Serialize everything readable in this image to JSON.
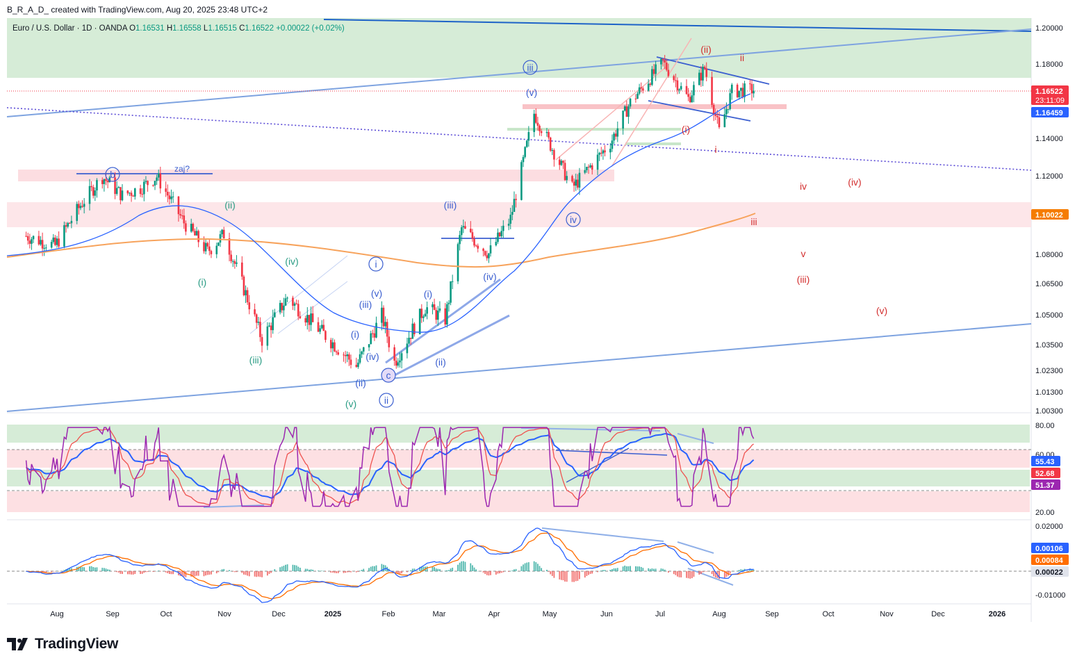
{
  "header": {
    "attribution": "B_R_A_D_ created with TradingView.com, Aug 20, 2025 23:48 UTC+2"
  },
  "legend": {
    "symbol": "Euro / U.S. Dollar · 1D · OANDA",
    "o_label": "O",
    "o": "1.16531",
    "h_label": "H",
    "h": "1.16558",
    "l_label": "L",
    "l": "1.16515",
    "c_label": "C",
    "c": "1.16522",
    "change": "+0.00022 (+0.02%)"
  },
  "footer": {
    "brand": "TradingView"
  },
  "colors": {
    "up": "#089981",
    "down": "#f23645",
    "ema": "#2962ff",
    "sma": "#f7a35c",
    "rsi": "#9c27b0",
    "macd": "#2962ff",
    "signal": "#ff6d00"
  },
  "chart_data": [
    {
      "type": "candlestick",
      "symbol": "EURUSD",
      "timeframe": "1D",
      "price_axis_ticks": [
        "1.20000",
        "1.18000",
        "1.14000",
        "1.12000",
        "1.08000",
        "1.06500",
        "1.05000",
        "1.03500",
        "1.02300",
        "1.01300",
        "1.00300"
      ],
      "time_axis_ticks": [
        "Aug",
        "Sep",
        "Oct",
        "Nov",
        "Dec",
        "2025",
        "Feb",
        "Mar",
        "Apr",
        "May",
        "Jun",
        "Jul",
        "Aug",
        "Sep",
        "Oct",
        "Nov",
        "Dec",
        "2026"
      ],
      "price_markers": [
        {
          "value": "1.16522",
          "sub": "23:11:09",
          "color": "#f23645"
        },
        {
          "value": "1.16459",
          "color": "#2962ff"
        },
        {
          "value": "1.10022",
          "color": "#f57c00"
        }
      ],
      "close_path": [
        [
          "2024-07-15",
          1.087
        ],
        [
          "2024-07-31",
          1.082
        ],
        [
          "2024-08-14",
          1.103
        ],
        [
          "2024-08-26",
          1.118
        ],
        [
          "2024-09-06",
          1.108
        ],
        [
          "2024-09-16",
          1.112
        ],
        [
          "2024-09-25",
          1.118
        ],
        [
          "2024-10-10",
          1.094
        ],
        [
          "2024-10-23",
          1.079
        ],
        [
          "2024-11-01",
          1.088
        ],
        [
          "2024-11-22",
          1.035
        ],
        [
          "2024-12-06",
          1.056
        ],
        [
          "2024-12-20",
          1.043
        ],
        [
          "2025-01-13",
          1.022
        ],
        [
          "2025-01-27",
          1.047
        ],
        [
          "2025-02-03",
          1.024
        ],
        [
          "2025-02-20",
          1.051
        ],
        [
          "2025-03-03",
          1.045
        ],
        [
          "2025-03-12",
          1.091
        ],
        [
          "2025-03-27",
          1.078
        ],
        [
          "2025-04-08",
          1.096
        ],
        [
          "2025-04-21",
          1.152
        ],
        [
          "2025-05-12",
          1.112
        ],
        [
          "2025-06-02",
          1.136
        ],
        [
          "2025-06-13",
          1.158
        ],
        [
          "2025-07-01",
          1.18
        ],
        [
          "2025-07-15",
          1.16
        ],
        [
          "2025-07-24",
          1.177
        ],
        [
          "2025-08-01",
          1.142
        ],
        [
          "2025-08-08",
          1.164
        ],
        [
          "2025-08-20",
          1.165
        ]
      ],
      "wave_labels": [
        "b",
        "zaj?",
        "(ii)",
        "(iv)",
        "(i)",
        "(iii)",
        "(v)",
        "(ii)",
        "(i)",
        "(iii)",
        "(iv)",
        "(v)",
        "i",
        "ii",
        "c",
        "(iii)",
        "(i)",
        "(ii)",
        "(iii)",
        "(iv)",
        "iii",
        "(v)",
        "iv",
        "(ii)",
        "ii",
        "(i)",
        "i",
        "iv",
        "(iv)",
        "iii",
        "v",
        "(iii)",
        "(v)"
      ]
    },
    {
      "type": "line",
      "name": "RSI",
      "y_ticks": [
        "80.00",
        "60.00",
        "20.00"
      ],
      "markers": [
        {
          "value": "55.43",
          "color": "#2962ff"
        },
        {
          "value": "52.68",
          "color": "#f23645"
        },
        {
          "value": "51.37",
          "color": "#9c27b0"
        }
      ]
    },
    {
      "type": "line",
      "name": "MACD",
      "y_ticks": [
        "0.02000",
        "-0.01000"
      ],
      "markers": [
        {
          "value": "0.00106",
          "color": "#2962ff"
        },
        {
          "value": "0.00084",
          "color": "#ff6d00"
        },
        {
          "value": "0.00022",
          "color": "#131722"
        }
      ]
    }
  ]
}
